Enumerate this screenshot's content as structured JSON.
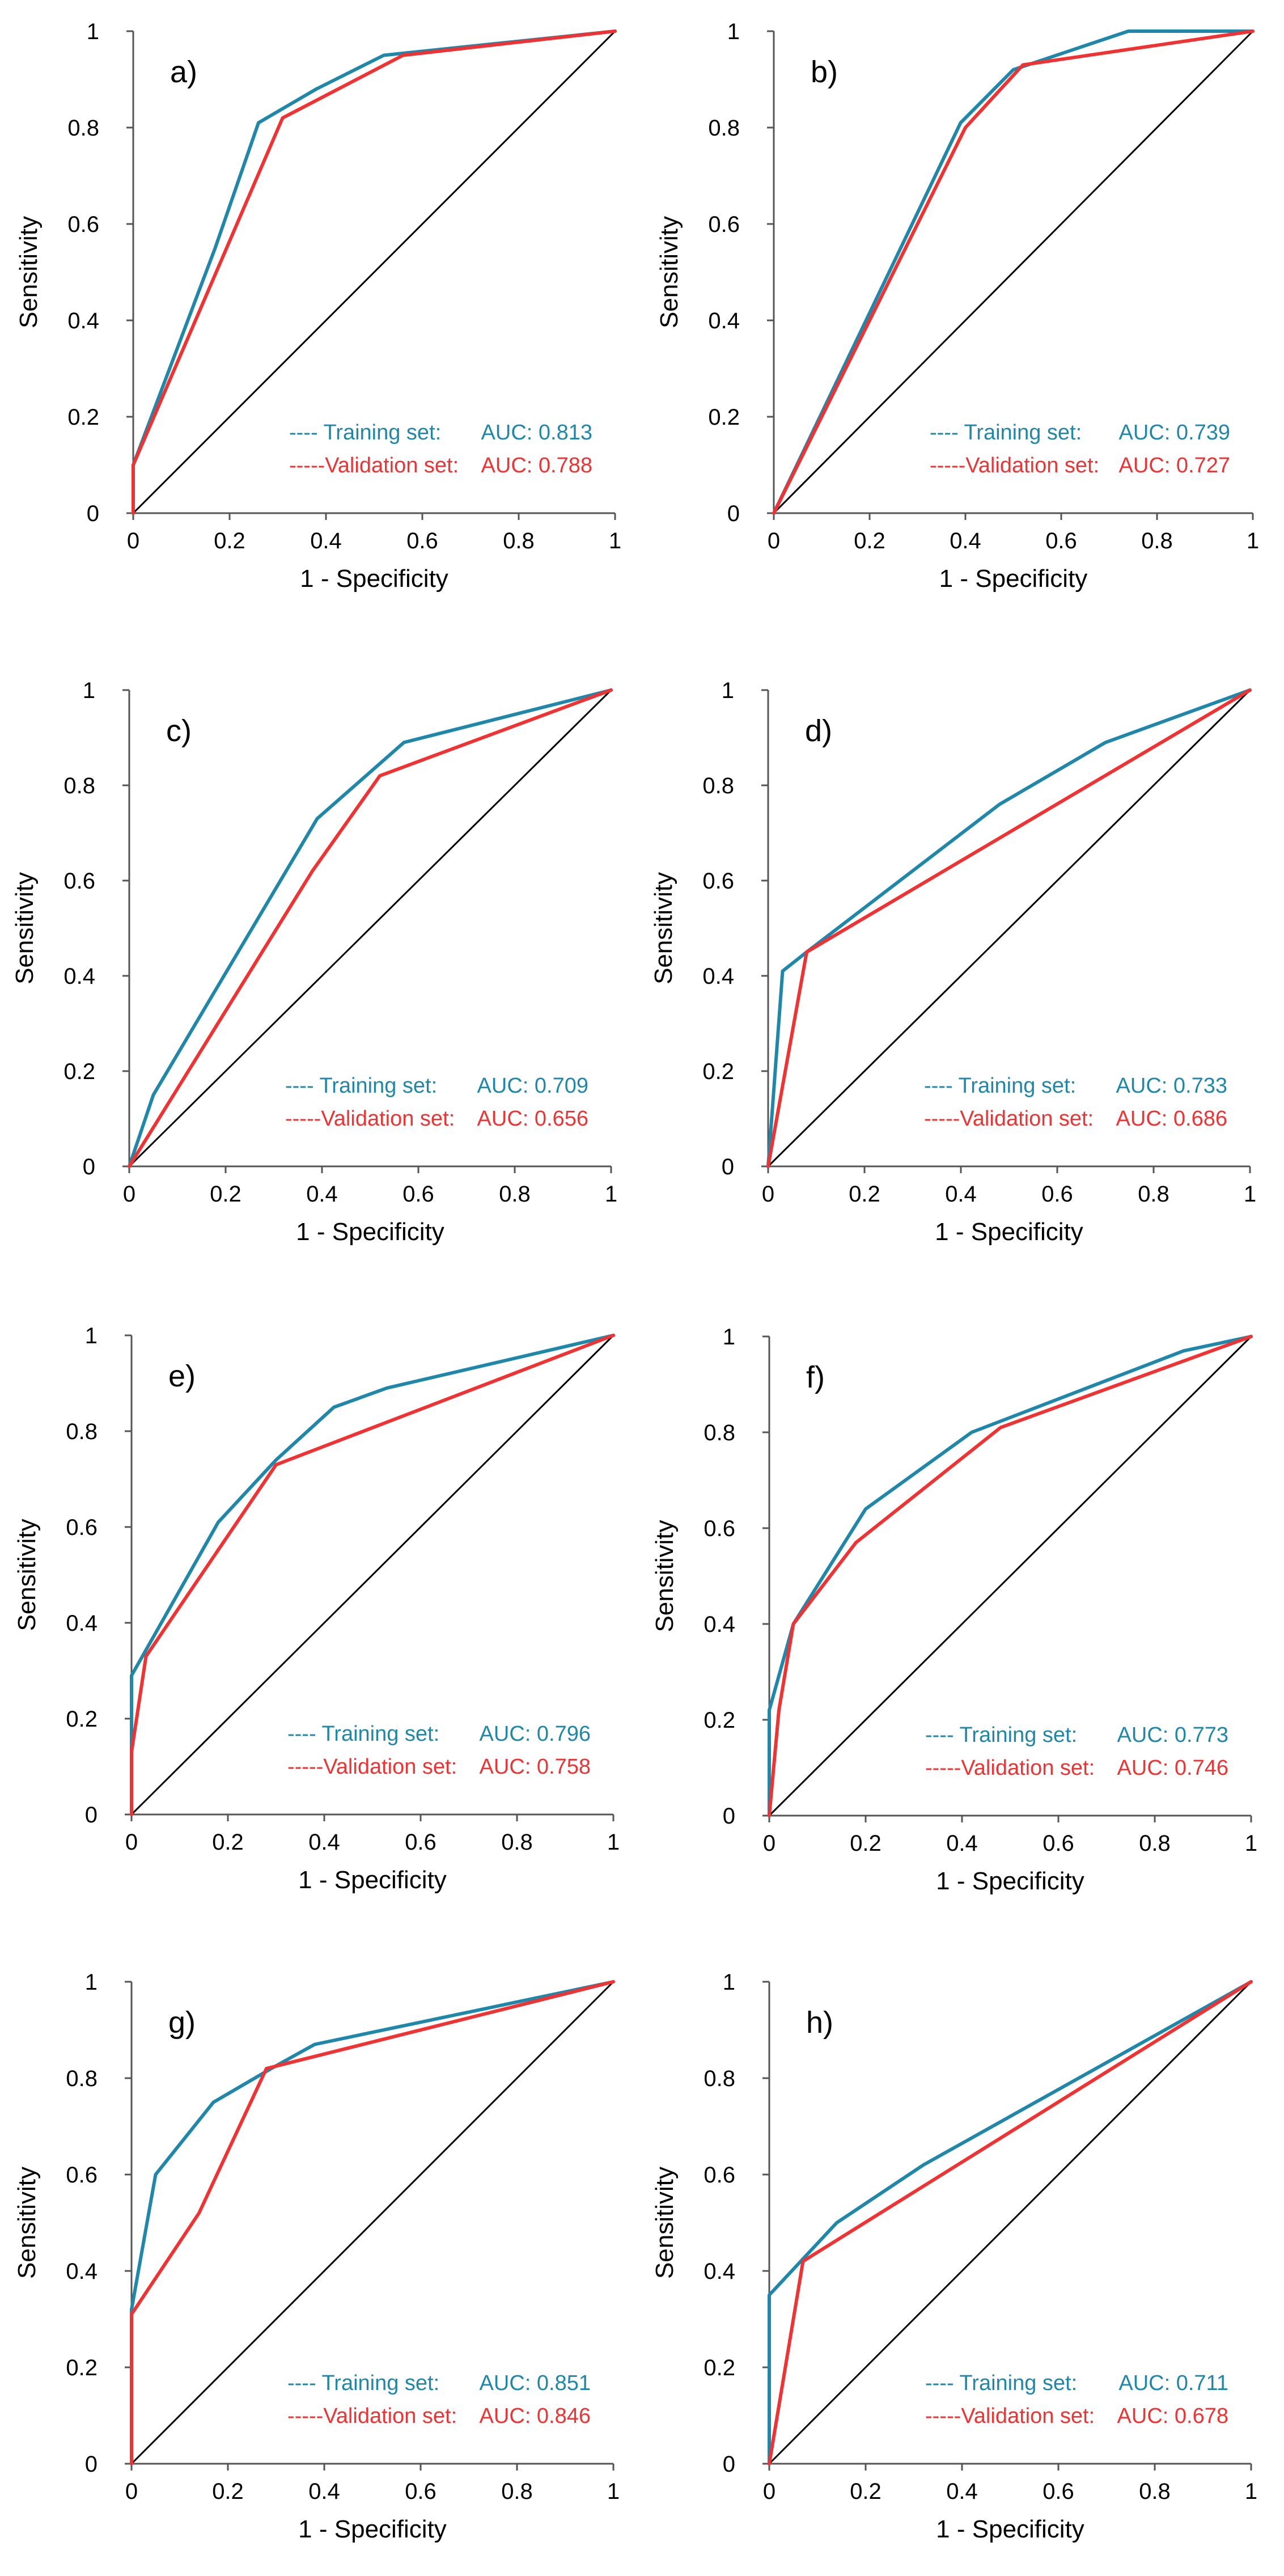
{
  "colors": {
    "training": "#1f87aa",
    "validation": "#f03232",
    "diagonal": "#000000",
    "axis": "#555555"
  },
  "chart_data": [
    {
      "type": "line",
      "panel_label": "a)",
      "xlabel": "1 - Specificity",
      "ylabel": "Sensitivity",
      "xlim": [
        0,
        1
      ],
      "ylim": [
        0,
        1
      ],
      "xticks": [
        "0",
        "0.2",
        "0.4",
        "0.6",
        "0.8",
        "1"
      ],
      "yticks": [
        "0",
        "0.2",
        "0.4",
        "0.6",
        "0.8",
        "1"
      ],
      "legend_position": "bottom-right",
      "series": [
        {
          "name": "Training set",
          "legend_label": "---- Training set:",
          "auc_label": "AUC: 0.813",
          "auc": 0.813,
          "x": [
            0,
            0,
            0.17,
            0.26,
            0.38,
            0.52,
            1
          ],
          "y": [
            0,
            0.1,
            0.55,
            0.81,
            0.88,
            0.95,
            1
          ]
        },
        {
          "name": "Validation set",
          "legend_label": "-----Validation set:",
          "auc_label": "AUC: 0.788",
          "auc": 0.788,
          "x": [
            0,
            0,
            0.31,
            0.56,
            1
          ],
          "y": [
            0,
            0.1,
            0.82,
            0.95,
            1
          ]
        }
      ]
    },
    {
      "type": "line",
      "panel_label": "b)",
      "xlabel": "1 - Specificity",
      "ylabel": "Sensitivity",
      "xlim": [
        0,
        1
      ],
      "ylim": [
        0,
        1
      ],
      "xticks": [
        "0",
        "0.2",
        "0.4",
        "0.6",
        "0.8",
        "1"
      ],
      "yticks": [
        "0",
        "0.2",
        "0.4",
        "0.6",
        "0.8",
        "1"
      ],
      "legend_position": "bottom-right",
      "series": [
        {
          "name": "Training set",
          "legend_label": "---- Training set:",
          "auc_label": "AUC: 0.739",
          "auc": 0.739,
          "x": [
            0,
            0.39,
            0.5,
            0.74,
            1
          ],
          "y": [
            0,
            0.81,
            0.92,
            1.0,
            1
          ]
        },
        {
          "name": "Validation set",
          "legend_label": "-----Validation set:",
          "auc_label": "AUC: 0.727",
          "auc": 0.727,
          "x": [
            0,
            0.4,
            0.52,
            1
          ],
          "y": [
            0,
            0.8,
            0.93,
            1
          ]
        }
      ]
    },
    {
      "type": "line",
      "panel_label": "c)",
      "xlabel": "1 - Specificity",
      "ylabel": "Sensitivity",
      "xlim": [
        0,
        1
      ],
      "ylim": [
        0,
        1
      ],
      "xticks": [
        "0",
        "0.2",
        "0.4",
        "0.6",
        "0.8",
        "1"
      ],
      "yticks": [
        "0",
        "0.2",
        "0.4",
        "0.6",
        "0.8",
        "1"
      ],
      "legend_position": "bottom-right",
      "series": [
        {
          "name": "Training set",
          "legend_label": "---- Training set:",
          "auc_label": "AUC: 0.709",
          "auc": 0.709,
          "x": [
            0,
            0.05,
            0.39,
            0.57,
            1
          ],
          "y": [
            0,
            0.15,
            0.73,
            0.89,
            1
          ]
        },
        {
          "name": "Validation set",
          "legend_label": "-----Validation set:",
          "auc_label": "AUC: 0.656",
          "auc": 0.656,
          "x": [
            0,
            0.38,
            0.52,
            1
          ],
          "y": [
            0,
            0.62,
            0.82,
            1
          ]
        }
      ]
    },
    {
      "type": "line",
      "panel_label": "d)",
      "xlabel": "1 - Specificity",
      "ylabel": "Sensitivity",
      "xlim": [
        0,
        1
      ],
      "ylim": [
        0,
        1
      ],
      "xticks": [
        "0",
        "0.2",
        "0.4",
        "0.6",
        "0.8",
        "1"
      ],
      "yticks": [
        "0",
        "0.2",
        "0.4",
        "0.6",
        "0.8",
        "1"
      ],
      "legend_position": "bottom-right",
      "series": [
        {
          "name": "Training set",
          "legend_label": "---- Training set:",
          "auc_label": "AUC: 0.733",
          "auc": 0.733,
          "x": [
            0,
            0.03,
            0.08,
            0.48,
            0.7,
            1
          ],
          "y": [
            0,
            0.41,
            0.45,
            0.76,
            0.89,
            1
          ]
        },
        {
          "name": "Validation set",
          "legend_label": "-----Validation set:",
          "auc_label": "AUC: 0.686",
          "auc": 0.686,
          "x": [
            0,
            0.08,
            1
          ],
          "y": [
            0,
            0.45,
            1
          ]
        }
      ]
    },
    {
      "type": "line",
      "panel_label": "e)",
      "xlabel": "1 - Specificity",
      "ylabel": "Sensitivity",
      "xlim": [
        0,
        1
      ],
      "ylim": [
        0,
        1
      ],
      "xticks": [
        "0",
        "0.2",
        "0.4",
        "0.6",
        "0.8",
        "1"
      ],
      "yticks": [
        "0",
        "0.2",
        "0.4",
        "0.6",
        "0.8",
        "1"
      ],
      "legend_position": "bottom-right",
      "series": [
        {
          "name": "Training set",
          "legend_label": "---- Training set:",
          "auc_label": "AUC: 0.796",
          "auc": 0.796,
          "x": [
            0,
            0,
            0.18,
            0.3,
            0.42,
            0.53,
            1
          ],
          "y": [
            0,
            0.29,
            0.61,
            0.74,
            0.85,
            0.89,
            1
          ]
        },
        {
          "name": "Validation set",
          "legend_label": "-----Validation set:",
          "auc_label": "AUC: 0.758",
          "auc": 0.758,
          "x": [
            0,
            0,
            0.03,
            0.3,
            1
          ],
          "y": [
            0,
            0.13,
            0.33,
            0.73,
            1
          ]
        }
      ]
    },
    {
      "type": "line",
      "panel_label": "f)",
      "xlabel": "1 - Specificity",
      "ylabel": "Sensitivity",
      "xlim": [
        0,
        1
      ],
      "ylim": [
        0,
        1
      ],
      "xticks": [
        "0",
        "0.2",
        "0.4",
        "0.6",
        "0.8",
        "1"
      ],
      "yticks": [
        "0",
        "0.2",
        "0.4",
        "0.6",
        "0.8",
        "1"
      ],
      "legend_position": "bottom-right",
      "series": [
        {
          "name": "Training set",
          "legend_label": "---- Training set:",
          "auc_label": "AUC: 0.773",
          "auc": 0.773,
          "x": [
            0,
            0,
            0.05,
            0.2,
            0.42,
            0.86,
            1
          ],
          "y": [
            0,
            0.22,
            0.4,
            0.64,
            0.8,
            0.97,
            1
          ]
        },
        {
          "name": "Validation set",
          "legend_label": "-----Validation set:",
          "auc_label": "AUC: 0.746",
          "auc": 0.746,
          "x": [
            0,
            0.02,
            0.05,
            0.18,
            0.48,
            1
          ],
          "y": [
            0,
            0.22,
            0.4,
            0.57,
            0.81,
            1
          ]
        }
      ]
    },
    {
      "type": "line",
      "panel_label": "g)",
      "xlabel": "1 - Specificity",
      "ylabel": "Sensitivity",
      "xlim": [
        0,
        1
      ],
      "ylim": [
        0,
        1
      ],
      "xticks": [
        "0",
        "0.2",
        "0.4",
        "0.6",
        "0.8",
        "1"
      ],
      "yticks": [
        "0",
        "0.2",
        "0.4",
        "0.6",
        "0.8",
        "1"
      ],
      "legend_position": "bottom-right",
      "series": [
        {
          "name": "Training set",
          "legend_label": "---- Training set:",
          "auc_label": "AUC: 0.851",
          "auc": 0.851,
          "x": [
            0,
            0,
            0.05,
            0.17,
            0.29,
            0.38,
            1
          ],
          "y": [
            0,
            0.32,
            0.6,
            0.75,
            0.82,
            0.87,
            1
          ]
        },
        {
          "name": "Validation set",
          "legend_label": "-----Validation set:",
          "auc_label": "AUC: 0.846",
          "auc": 0.846,
          "x": [
            0,
            0,
            0.14,
            0.28,
            1
          ],
          "y": [
            0,
            0.31,
            0.52,
            0.82,
            1
          ]
        }
      ]
    },
    {
      "type": "line",
      "panel_label": "h)",
      "xlabel": "1 - Specificity",
      "ylabel": "Sensitivity",
      "xlim": [
        0,
        1
      ],
      "ylim": [
        0,
        1
      ],
      "xticks": [
        "0",
        "0.2",
        "0.4",
        "0.6",
        "0.8",
        "1"
      ],
      "yticks": [
        "0",
        "0.2",
        "0.4",
        "0.6",
        "0.8",
        "1"
      ],
      "legend_position": "bottom-right",
      "series": [
        {
          "name": "Training set",
          "legend_label": "---- Training set:",
          "auc_label": "AUC: 0.711",
          "auc": 0.711,
          "x": [
            0,
            0,
            0.14,
            0.32,
            1
          ],
          "y": [
            0,
            0.35,
            0.5,
            0.62,
            1
          ]
        },
        {
          "name": "Validation set",
          "legend_label": "-----Validation set:",
          "auc_label": "AUC: 0.678",
          "auc": 0.678,
          "x": [
            0,
            0.07,
            1
          ],
          "y": [
            0,
            0.42,
            1
          ]
        }
      ]
    }
  ]
}
